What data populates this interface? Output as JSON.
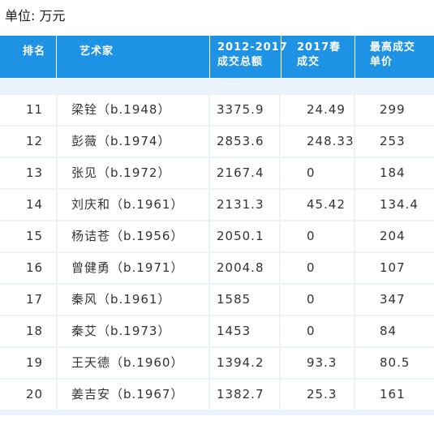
{
  "unit_label": "单位: 万元",
  "headers": {
    "rank": "排名",
    "artist": "艺术家",
    "total_line1": "2012-2017",
    "total_line2": "成交总额",
    "spring_line1": "2017春",
    "spring_line2": "成交",
    "max_line1": "最高成交",
    "max_line2": "单价"
  },
  "rows": [
    {
      "rank": "11",
      "artist": "梁铨（b.1948）",
      "total": "3375.9",
      "spring": "24.49",
      "max": "299"
    },
    {
      "rank": "12",
      "artist": "彭薇（b.1974）",
      "total": "2853.6",
      "spring": "248.33",
      "max": "253"
    },
    {
      "rank": "13",
      "artist": "张见（b.1972）",
      "total": "2167.4",
      "spring": "0",
      "max": "184"
    },
    {
      "rank": "14",
      "artist": "刘庆和（b.1961）",
      "total": "2131.3",
      "spring": "45.42",
      "max": "134.4"
    },
    {
      "rank": "15",
      "artist": "杨诘苍（b.1956）",
      "total": "2050.1",
      "spring": "0",
      "max": "204"
    },
    {
      "rank": "16",
      "artist": "曾健勇（b.1971）",
      "total": "2004.8",
      "spring": "0",
      "max": "107"
    },
    {
      "rank": "17",
      "artist": "秦风（b.1961）",
      "total": "1585",
      "spring": "0",
      "max": "347"
    },
    {
      "rank": "18",
      "artist": "秦艾（b.1973）",
      "total": "1453",
      "spring": "0",
      "max": "84"
    },
    {
      "rank": "19",
      "artist": "王天德（b.1960）",
      "total": "1394.2",
      "spring": "93.3",
      "max": "80.5"
    },
    {
      "rank": "20",
      "artist": "姜吉安（b.1967）",
      "total": "1382.7",
      "spring": "25.3",
      "max": "161"
    }
  ]
}
